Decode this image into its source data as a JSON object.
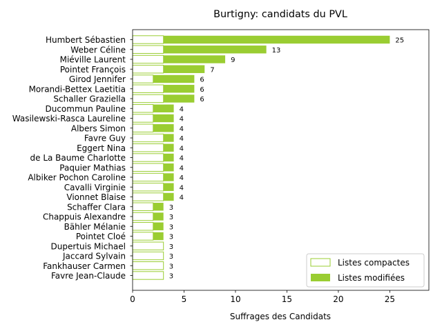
{
  "chart_data": {
    "type": "bar",
    "orientation": "horizontal",
    "stacked": true,
    "title": "Burtigny: candidats du PVL",
    "xlabel": "Suffrages des Candidats",
    "ylabel": "",
    "xlim": [
      0,
      28.8
    ],
    "xticks": [
      0,
      5,
      10,
      15,
      20,
      25
    ],
    "grid": false,
    "legend_position": "lower-right",
    "colors": {
      "compact_edge": "#9acd32",
      "modified_fill": "#9acd32"
    },
    "categories": [
      "Humbert Sébastien",
      "Weber Céline",
      "Miéville Laurent",
      "Pointet François",
      "Girod Jennifer",
      "Morandi-Bettex Laetitia",
      "Schaller Graziella",
      "Ducommun Pauline",
      "Wasilewski-Rasca Laureline",
      "Albers Simon",
      "Favre Guy",
      "Eggert Nina",
      "de La Baume Charlotte",
      "Paquier Mathias",
      "Albiker Pochon Caroline",
      "Cavalli Virginie",
      "Vionnet Blaise",
      "Schaffer Clara",
      "Chappuis Alexandre",
      "Bähler Mélanie",
      "Pointet Cloé",
      "Dupertuis Michael",
      "Jaccard Sylvain",
      "Fankhauser Carmen",
      "Favre Jean-Claude"
    ],
    "series": [
      {
        "name": "Listes compactes",
        "values": [
          3,
          3,
          3,
          3,
          2,
          3,
          3,
          2,
          2,
          2,
          3,
          3,
          3,
          3,
          3,
          3,
          3,
          2,
          2,
          2,
          2,
          3,
          3,
          3,
          3
        ]
      },
      {
        "name": "Listes modifiées",
        "values": [
          22,
          10,
          6,
          4,
          4,
          3,
          3,
          2,
          2,
          2,
          1,
          1,
          1,
          1,
          1,
          1,
          1,
          1,
          1,
          1,
          1,
          0,
          0,
          0,
          0
        ]
      }
    ],
    "totals": [
      25,
      13,
      9,
      7,
      6,
      6,
      6,
      4,
      4,
      4,
      4,
      4,
      4,
      4,
      4,
      4,
      4,
      3,
      3,
      3,
      3,
      3,
      3,
      3,
      3
    ]
  }
}
